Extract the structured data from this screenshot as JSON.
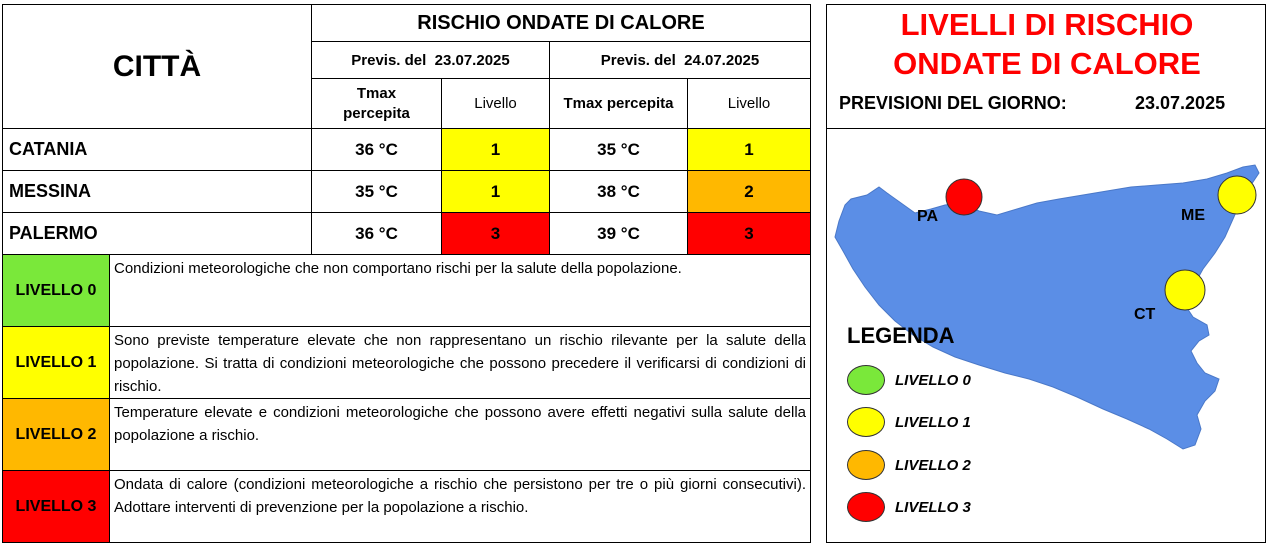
{
  "colors": {
    "green": "#7AE83A",
    "yellow": "#FFFF00",
    "orange": "#FFB800",
    "red": "#FF0000",
    "map_fill": "#5B8EE6",
    "title_red": "#FF0000"
  },
  "table": {
    "city_header": "CITTÀ",
    "main_header": "RISCHIO ONDATE DI CALORE",
    "day1_header": "Previs. del  23.07.2025",
    "day2_header": "Previs. del  24.07.2025",
    "tmax_label_1": "Tmax\npercepita",
    "level_label_1": "Livello",
    "tmax_label_2": "Tmax percepita",
    "level_label_2": "Livello",
    "rows": [
      {
        "city": "CATANIA",
        "tmax1": "36 °C",
        "lvl1": "1",
        "tmax2": "35 °C",
        "lvl2": "1"
      },
      {
        "city": "MESSINA",
        "tmax1": "35 °C",
        "lvl1": "1",
        "tmax2": "38 °C",
        "lvl2": "2"
      },
      {
        "city": "PALERMO",
        "tmax1": "36 °C",
        "lvl1": "3",
        "tmax2": "39 °C",
        "lvl2": "3"
      }
    ]
  },
  "levels": [
    {
      "label": "LIVELLO 0",
      "text": "Condizioni meteorologiche che non comportano rischi per la salute della popolazione."
    },
    {
      "label": "LIVELLO 1",
      "text": "Sono previste temperature elevate che non rappresentano un rischio rilevante per la salute della popolazione. Si tratta di condizioni meteorologiche che possono precedere il verificarsi di condizioni di rischio."
    },
    {
      "label": "LIVELLO 2",
      "text": "Temperature elevate e condizioni meteorologiche che possono avere effetti negativi sulla salute della popolazione a rischio."
    },
    {
      "label": "LIVELLO 3",
      "text": "Ondata di calore (condizioni meteorologiche a rischio che persistono per tre o più giorni consecutivi). Adottare interventi di prevenzione per la popolazione a rischio."
    }
  ],
  "panel": {
    "title_line1": "LIVELLI DI RISCHIO",
    "title_line2": "ONDATE DI CALORE",
    "forecast_label": "PREVISIONI DEL GIORNO:",
    "forecast_date": "23.07.2025"
  },
  "map": {
    "labels": {
      "pa": "PA",
      "me": "ME",
      "ct": "CT"
    },
    "legend_title": "LEGENDA",
    "legend": [
      "LIVELLO 0",
      "LIVELLO 1",
      "LIVELLO 2",
      "LIVELLO 3"
    ]
  }
}
